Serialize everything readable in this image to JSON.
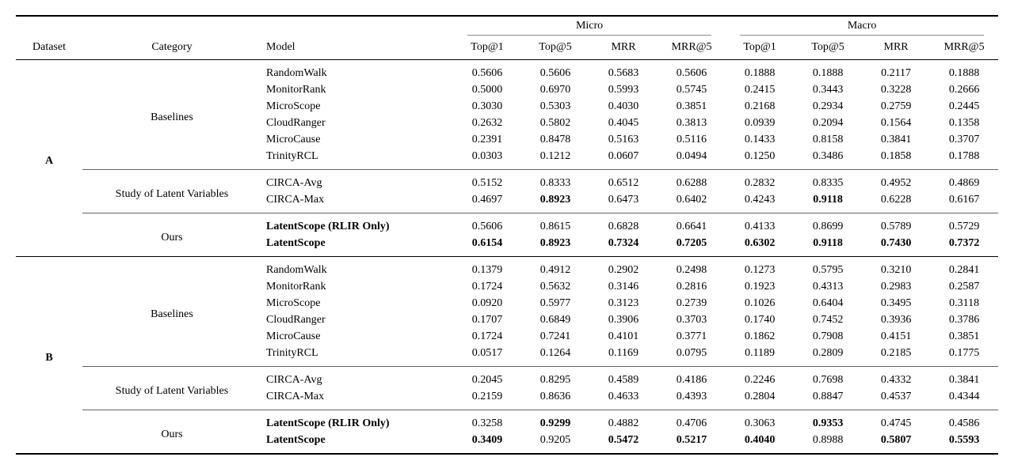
{
  "table": {
    "header": {
      "dataset": "Dataset",
      "category": "Category",
      "model": "Model",
      "groups": [
        "Micro",
        "Macro"
      ],
      "metrics": [
        "Top@1",
        "Top@5",
        "MRR",
        "MRR@5"
      ]
    },
    "rule_colors": {
      "heavy": "#000000",
      "cmidrule": "#8c8c8c",
      "group_rule": "#636363"
    },
    "datasets": [
      {
        "name": "A",
        "categories": [
          {
            "label": "Baselines",
            "rows": [
              {
                "model": "RandomWalk",
                "bold_model": false,
                "values": [
                  "0.5606",
                  "0.5606",
                  "0.5683",
                  "0.5606",
                  "0.1888",
                  "0.1888",
                  "0.2117",
                  "0.1888"
                ],
                "bold_cols": []
              },
              {
                "model": "MonitorRank",
                "bold_model": false,
                "values": [
                  "0.5000",
                  "0.6970",
                  "0.5993",
                  "0.5745",
                  "0.2415",
                  "0.3443",
                  "0.3228",
                  "0.2666"
                ],
                "bold_cols": []
              },
              {
                "model": "MicroScope",
                "bold_model": false,
                "values": [
                  "0.3030",
                  "0.5303",
                  "0.4030",
                  "0.3851",
                  "0.2168",
                  "0.2934",
                  "0.2759",
                  "0.2445"
                ],
                "bold_cols": []
              },
              {
                "model": "CloudRanger",
                "bold_model": false,
                "values": [
                  "0.2632",
                  "0.5802",
                  "0.4045",
                  "0.3813",
                  "0.0939",
                  "0.2094",
                  "0.1564",
                  "0.1358"
                ],
                "bold_cols": []
              },
              {
                "model": "MicroCause",
                "bold_model": false,
                "values": [
                  "0.2391",
                  "0.8478",
                  "0.5163",
                  "0.5116",
                  "0.1433",
                  "0.8158",
                  "0.3841",
                  "0.3707"
                ],
                "bold_cols": []
              },
              {
                "model": "TrinityRCL",
                "bold_model": false,
                "values": [
                  "0.0303",
                  "0.1212",
                  "0.0607",
                  "0.0494",
                  "0.1250",
                  "0.3486",
                  "0.1858",
                  "0.1788"
                ],
                "bold_cols": []
              }
            ]
          },
          {
            "label": "Study of Latent Variables",
            "rows": [
              {
                "model": "CIRCA-Avg",
                "bold_model": false,
                "values": [
                  "0.5152",
                  "0.8333",
                  "0.6512",
                  "0.6288",
                  "0.2832",
                  "0.8335",
                  "0.4952",
                  "0.4869"
                ],
                "bold_cols": []
              },
              {
                "model": "CIRCA-Max",
                "bold_model": false,
                "values": [
                  "0.4697",
                  "0.8923",
                  "0.6473",
                  "0.6402",
                  "0.4243",
                  "0.9118",
                  "0.6228",
                  "0.6167"
                ],
                "bold_cols": [
                  1,
                  5
                ]
              }
            ]
          },
          {
            "label": "Ours",
            "rows": [
              {
                "model": "LatentScope (RLIR Only)",
                "bold_model": true,
                "values": [
                  "0.5606",
                  "0.8615",
                  "0.6828",
                  "0.6641",
                  "0.4133",
                  "0.8699",
                  "0.5789",
                  "0.5729"
                ],
                "bold_cols": []
              },
              {
                "model": "LatentScope",
                "bold_model": true,
                "values": [
                  "0.6154",
                  "0.8923",
                  "0.7324",
                  "0.7205",
                  "0.6302",
                  "0.9118",
                  "0.7430",
                  "0.7372"
                ],
                "bold_cols": [
                  0,
                  1,
                  2,
                  3,
                  4,
                  5,
                  6,
                  7
                ]
              }
            ]
          }
        ]
      },
      {
        "name": "B",
        "categories": [
          {
            "label": "Baselines",
            "rows": [
              {
                "model": "RandomWalk",
                "bold_model": false,
                "values": [
                  "0.1379",
                  "0.4912",
                  "0.2902",
                  "0.2498",
                  "0.1273",
                  "0.5795",
                  "0.3210",
                  "0.2841"
                ],
                "bold_cols": []
              },
              {
                "model": "MonitorRank",
                "bold_model": false,
                "values": [
                  "0.1724",
                  "0.5632",
                  "0.3146",
                  "0.2816",
                  "0.1923",
                  "0.4313",
                  "0.2983",
                  "0.2587"
                ],
                "bold_cols": []
              },
              {
                "model": "MicroScope",
                "bold_model": false,
                "values": [
                  "0.0920",
                  "0.5977",
                  "0.3123",
                  "0.2739",
                  "0.1026",
                  "0.6404",
                  "0.3495",
                  "0.3118"
                ],
                "bold_cols": []
              },
              {
                "model": "CloudRanger",
                "bold_model": false,
                "values": [
                  "0.1707",
                  "0.6849",
                  "0.3906",
                  "0.3703",
                  "0.1740",
                  "0.7452",
                  "0.3936",
                  "0.3786"
                ],
                "bold_cols": []
              },
              {
                "model": "MicroCause",
                "bold_model": false,
                "values": [
                  "0.1724",
                  "0.7241",
                  "0.4101",
                  "0.3771",
                  "0.1862",
                  "0.7908",
                  "0.4151",
                  "0.3851"
                ],
                "bold_cols": []
              },
              {
                "model": "TrinityRCL",
                "bold_model": false,
                "values": [
                  "0.0517",
                  "0.1264",
                  "0.1169",
                  "0.0795",
                  "0.1189",
                  "0.2809",
                  "0.2185",
                  "0.1775"
                ],
                "bold_cols": []
              }
            ]
          },
          {
            "label": "Study of Latent Variables",
            "rows": [
              {
                "model": "CIRCA-Avg",
                "bold_model": false,
                "values": [
                  "0.2045",
                  "0.8295",
                  "0.4589",
                  "0.4186",
                  "0.2246",
                  "0.7698",
                  "0.4332",
                  "0.3841"
                ],
                "bold_cols": []
              },
              {
                "model": "CIRCA-Max",
                "bold_model": false,
                "values": [
                  "0.2159",
                  "0.8636",
                  "0.4633",
                  "0.4393",
                  "0.2804",
                  "0.8847",
                  "0.4537",
                  "0.4344"
                ],
                "bold_cols": []
              }
            ]
          },
          {
            "label": "Ours",
            "rows": [
              {
                "model": "LatentScope (RLIR Only)",
                "bold_model": true,
                "values": [
                  "0.3258",
                  "0.9299",
                  "0.4882",
                  "0.4706",
                  "0.3063",
                  "0.9353",
                  "0.4745",
                  "0.4586"
                ],
                "bold_cols": [
                  1,
                  5
                ]
              },
              {
                "model": "LatentScope",
                "bold_model": true,
                "values": [
                  "0.3409",
                  "0.9205",
                  "0.5472",
                  "0.5217",
                  "0.4040",
                  "0.8988",
                  "0.5807",
                  "0.5593"
                ],
                "bold_cols": [
                  0,
                  2,
                  3,
                  4,
                  6,
                  7
                ]
              }
            ]
          }
        ]
      }
    ]
  }
}
